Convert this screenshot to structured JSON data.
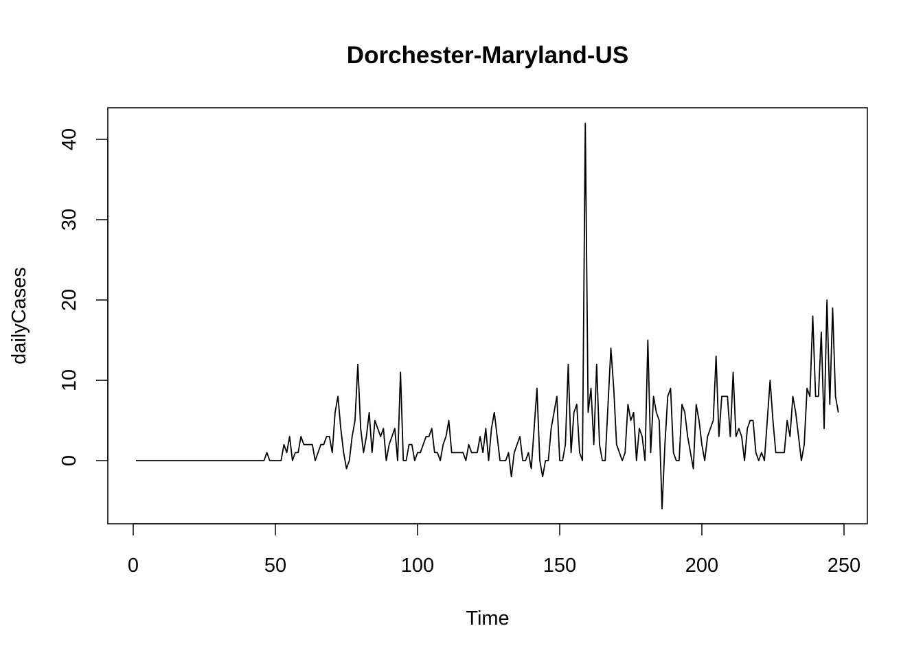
{
  "chart_data": {
    "type": "line",
    "title": "Dorchester-Maryland-US",
    "xlabel": "Time",
    "ylabel": "dailyCases",
    "xlim": [
      0,
      250
    ],
    "ylim": [
      -6,
      42
    ],
    "x_ticks": [
      0,
      50,
      100,
      150,
      200,
      250
    ],
    "y_ticks": [
      0,
      10,
      20,
      30,
      40
    ],
    "grid": false,
    "legend": "none",
    "line_color": "#000000",
    "x": [
      1,
      2,
      3,
      4,
      5,
      6,
      7,
      8,
      9,
      10,
      11,
      12,
      13,
      14,
      15,
      16,
      17,
      18,
      19,
      20,
      21,
      22,
      23,
      24,
      25,
      26,
      27,
      28,
      29,
      30,
      31,
      32,
      33,
      34,
      35,
      36,
      37,
      38,
      39,
      40,
      41,
      42,
      43,
      44,
      45,
      46,
      47,
      48,
      49,
      50,
      51,
      52,
      53,
      54,
      55,
      56,
      57,
      58,
      59,
      60,
      61,
      62,
      63,
      64,
      65,
      66,
      67,
      68,
      69,
      70,
      71,
      72,
      73,
      74,
      75,
      76,
      77,
      78,
      79,
      80,
      81,
      82,
      83,
      84,
      85,
      86,
      87,
      88,
      89,
      90,
      91,
      92,
      93,
      94,
      95,
      96,
      97,
      98,
      99,
      100,
      101,
      102,
      103,
      104,
      105,
      106,
      107,
      108,
      109,
      110,
      111,
      112,
      113,
      114,
      115,
      116,
      117,
      118,
      119,
      120,
      121,
      122,
      123,
      124,
      125,
      126,
      127,
      128,
      129,
      130,
      131,
      132,
      133,
      134,
      135,
      136,
      137,
      138,
      139,
      140,
      141,
      142,
      143,
      144,
      145,
      146,
      147,
      148,
      149,
      150,
      151,
      152,
      153,
      154,
      155,
      156,
      157,
      158,
      159,
      160,
      161,
      162,
      163,
      164,
      165,
      166,
      167,
      168,
      169,
      170,
      171,
      172,
      173,
      174,
      175,
      176,
      177,
      178,
      179,
      180,
      181,
      182,
      183,
      184,
      185,
      186,
      187,
      188,
      189,
      190,
      191,
      192,
      193,
      194,
      195,
      196,
      197,
      198,
      199,
      200,
      201,
      202,
      203,
      204,
      205,
      206,
      207,
      208,
      209,
      210,
      211,
      212,
      213,
      214,
      215,
      216,
      217,
      218,
      219,
      220,
      221,
      222,
      223,
      224,
      225,
      226,
      227,
      228,
      229,
      230,
      231,
      232,
      233,
      234,
      235,
      236,
      237,
      238,
      239,
      240,
      241,
      242,
      243,
      244,
      245,
      246,
      247,
      248
    ],
    "values": [
      0,
      0,
      0,
      0,
      0,
      0,
      0,
      0,
      0,
      0,
      0,
      0,
      0,
      0,
      0,
      0,
      0,
      0,
      0,
      0,
      0,
      0,
      0,
      0,
      0,
      0,
      0,
      0,
      0,
      0,
      0,
      0,
      0,
      0,
      0,
      0,
      0,
      0,
      0,
      0,
      0,
      0,
      0,
      0,
      0,
      0,
      1,
      0,
      0,
      0,
      0,
      0,
      2,
      1,
      3,
      0,
      1,
      1,
      3,
      2,
      2,
      2,
      2,
      0,
      1,
      2,
      2,
      3,
      3,
      1,
      6,
      8,
      4,
      1,
      -1,
      0,
      3,
      5,
      12,
      4,
      1,
      3,
      6,
      1,
      5,
      4,
      3,
      4,
      0,
      2,
      3,
      4,
      0,
      11,
      0,
      0,
      2,
      2,
      0,
      1,
      1,
      2,
      3,
      3,
      4,
      1,
      1,
      0,
      2,
      3,
      5,
      1,
      1,
      1,
      1,
      1,
      0,
      2,
      1,
      1,
      1,
      3,
      1,
      4,
      0,
      4,
      6,
      3,
      0,
      0,
      0,
      1,
      -2,
      1,
      2,
      3,
      0,
      0,
      1,
      -1,
      4,
      9,
      0,
      -2,
      0,
      0,
      4,
      6,
      8,
      0,
      0,
      2,
      12,
      1,
      6,
      7,
      1,
      0,
      42,
      6,
      9,
      2,
      12,
      2,
      0,
      0,
      7,
      14,
      9,
      2,
      1,
      0,
      1,
      7,
      5,
      6,
      0,
      4,
      3,
      0,
      15,
      1,
      8,
      6,
      5,
      -6,
      2,
      8,
      9,
      1,
      0,
      0,
      7,
      6,
      3,
      1,
      -1,
      7,
      5,
      2,
      0,
      3,
      4,
      5,
      13,
      3,
      8,
      8,
      8,
      3,
      11,
      3,
      4,
      3,
      0,
      4,
      5,
      5,
      1,
      0,
      1,
      0,
      5,
      10,
      5,
      1,
      1,
      1,
      1,
      5,
      3,
      8,
      6,
      3,
      0,
      2,
      9,
      8,
      18,
      8,
      8,
      16,
      4,
      20,
      7,
      19,
      8,
      6
    ]
  }
}
